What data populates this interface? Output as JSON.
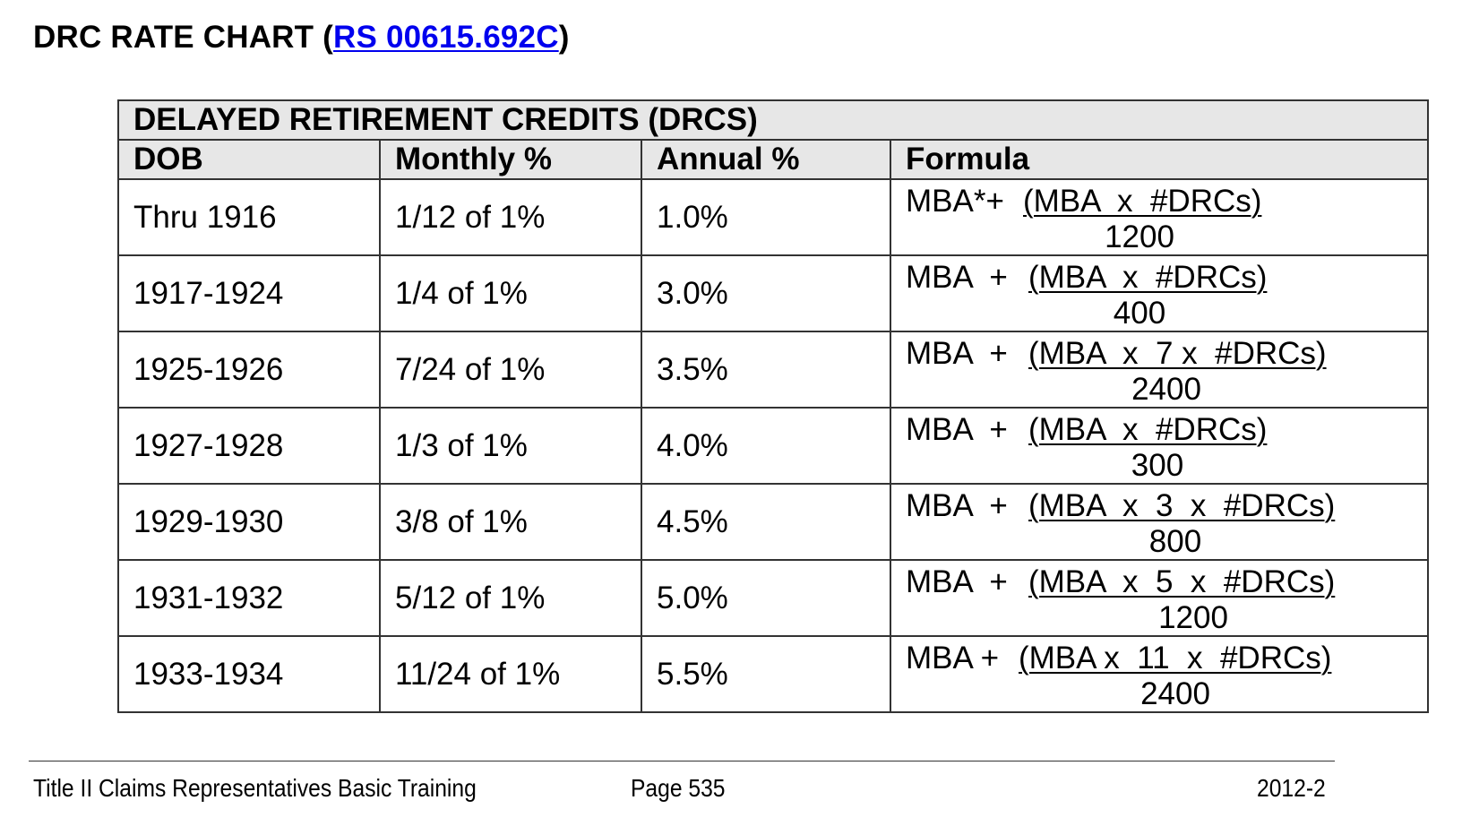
{
  "title": {
    "prefix": "DRC RATE CHART (",
    "link": "RS 00615.692C",
    "suffix": ")"
  },
  "table": {
    "caption": "DELAYED RETIREMENT CREDITS (DRCS)",
    "headers": [
      "DOB",
      "Monthly %",
      "Annual %",
      "Formula"
    ],
    "rows": [
      {
        "dob": "Thru 1916",
        "monthly": "1/12 of 1%",
        "annual": "1.0%",
        "formula_prefix": "MBA*+",
        "formula_numerator": "(MBA  x  #DRCs)",
        "formula_denominator": "1200"
      },
      {
        "dob": "1917-1924",
        "monthly": "1/4 of 1%",
        "annual": "3.0%",
        "formula_prefix": "MBA  +",
        "formula_numerator": "(MBA  x  #DRCs)",
        "formula_denominator": "400"
      },
      {
        "dob": "1925-1926",
        "monthly": "7/24 of 1%",
        "annual": "3.5%",
        "formula_prefix": "MBA  +",
        "formula_numerator": "(MBA  x  7 x  #DRCs)",
        "formula_denominator": "2400"
      },
      {
        "dob": "1927-1928",
        "monthly": "1/3 of 1%",
        "annual": "4.0%",
        "formula_prefix": "MBA  +",
        "formula_numerator": "(MBA  x  #DRCs)",
        "formula_denominator": "300"
      },
      {
        "dob": "1929-1930",
        "monthly": "3/8 of 1%",
        "annual": "4.5%",
        "formula_prefix": "MBA  +",
        "formula_numerator": "(MBA  x  3  x  #DRCs)",
        "formula_denominator": "800"
      },
      {
        "dob": "1931-1932",
        "monthly": "5/12 of 1%",
        "annual": "5.0%",
        "formula_prefix": "MBA  +",
        "formula_numerator": "(MBA  x  5  x  #DRCs)",
        "formula_denominator": "1200"
      },
      {
        "dob": "1933-1934",
        "monthly": "11/24 of 1%",
        "annual": "5.5%",
        "formula_prefix": "MBA +",
        "formula_numerator": "(MBA x  11  x  #DRCs)",
        "formula_denominator": "2400"
      }
    ]
  },
  "footer": {
    "left": "Title II Claims Representatives Basic Training",
    "center": "Page 535",
    "right": "2012-2"
  },
  "colors": {
    "link": "#0000ee",
    "header_background": "#e7e7e7",
    "border": "#333333"
  }
}
